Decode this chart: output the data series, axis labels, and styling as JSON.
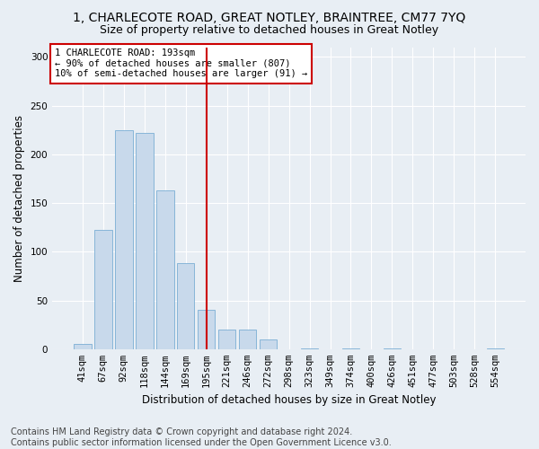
{
  "title": "1, CHARLECOTE ROAD, GREAT NOTLEY, BRAINTREE, CM77 7YQ",
  "subtitle": "Size of property relative to detached houses in Great Notley",
  "xlabel": "Distribution of detached houses by size in Great Notley",
  "ylabel": "Number of detached properties",
  "categories": [
    "41sqm",
    "67sqm",
    "92sqm",
    "118sqm",
    "144sqm",
    "169sqm",
    "195sqm",
    "221sqm",
    "246sqm",
    "272sqm",
    "298sqm",
    "323sqm",
    "349sqm",
    "374sqm",
    "400sqm",
    "426sqm",
    "451sqm",
    "477sqm",
    "503sqm",
    "528sqm",
    "554sqm"
  ],
  "values": [
    5,
    122,
    225,
    222,
    163,
    88,
    40,
    20,
    20,
    10,
    0,
    1,
    0,
    1,
    0,
    1,
    0,
    0,
    0,
    0,
    1
  ],
  "bar_color": "#c8d9eb",
  "bar_edge_color": "#7aaed4",
  "vline_index": 6,
  "vline_color": "#cc0000",
  "annotation_text": "1 CHARLECOTE ROAD: 193sqm\n← 90% of detached houses are smaller (807)\n10% of semi-detached houses are larger (91) →",
  "annotation_box_color": "#ffffff",
  "annotation_box_edgecolor": "#cc0000",
  "ylim": [
    0,
    310
  ],
  "yticks": [
    0,
    50,
    100,
    150,
    200,
    250,
    300
  ],
  "footer_text": "Contains HM Land Registry data © Crown copyright and database right 2024.\nContains public sector information licensed under the Open Government Licence v3.0.",
  "bg_color": "#e8eef4",
  "plot_bg_color": "#e8eef4",
  "title_fontsize": 10,
  "subtitle_fontsize": 9,
  "axis_label_fontsize": 8.5,
  "tick_fontsize": 7.5,
  "footer_fontsize": 7
}
